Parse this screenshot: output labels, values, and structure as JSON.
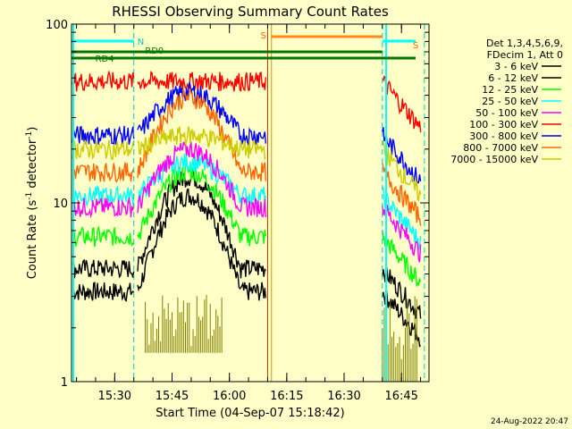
{
  "chart_data": {
    "type": "line",
    "title": "RHESSI Observing Summary Count Rates",
    "xlabel": "Start Time (04-Sep-07 15:18:42)",
    "ylabel_main": "Count Rate (s",
    "ylabel_sup1": "-1",
    "ylabel_mid": " detector",
    "ylabel_sup2": "-1",
    "ylabel_end": ")",
    "y_scale": "log",
    "ylim": [
      1,
      100
    ],
    "xlim_minutes": [
      15.3,
      16.85
    ],
    "x_ticks": [
      "15:30",
      "15:45",
      "16:00",
      "16:15",
      "16:30",
      "16:45"
    ],
    "y_ticks": [
      "1",
      "10",
      "100"
    ],
    "legend_header": [
      "Det 1,3,4,5,6,9,",
      "FDecim 1, Att 0"
    ],
    "footer": "24-Aug-2022 20:47",
    "flags": {
      "N": "N",
      "RD0": "RD0",
      "RD4": "RD4",
      "S": "S",
      "S2": "S"
    },
    "night_boundaries": [
      "15:35",
      "16:40",
      "16:51"
    ],
    "series": [
      {
        "name": "3 - 6 keV",
        "color": "#000000",
        "base": 3.2,
        "peak": 11
      },
      {
        "name": "6 - 12 keV",
        "color": "#000000",
        "base": 4.3,
        "peak": 14
      },
      {
        "name": "12 - 25 keV",
        "color": "#00ff00",
        "base": 6.5,
        "peak": 15
      },
      {
        "name": "25 - 50 keV",
        "color": "#00ffff",
        "base": 11,
        "peak": 17
      },
      {
        "name": "50 - 100 keV",
        "color": "#ff00ff",
        "base": 9.5,
        "peak": 20
      },
      {
        "name": "100 - 300 keV",
        "color": "#ff0000",
        "base": 48,
        "peak": 48
      },
      {
        "name": "300 - 800 keV",
        "color": "#0000ff",
        "base": 24,
        "peak": 42
      },
      {
        "name": "800 - 7000 keV",
        "color": "#ff6600",
        "base": 15,
        "peak": 39
      },
      {
        "name": "7000 - 15000 keV",
        "color": "#cccc00",
        "base": 20,
        "peak": 24
      }
    ]
  }
}
